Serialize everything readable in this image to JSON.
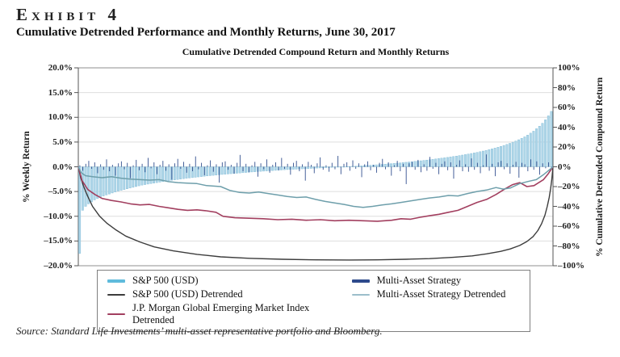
{
  "page": {
    "exhibit_label": "Exhibit 4",
    "title": "Cumulative Detrended Performance and Monthly Returns, June 30, 2017",
    "source": "Source: Standard Life Investments’ multi-asset representative portfolio and Bloomberg."
  },
  "chart_data": {
    "type": "bar",
    "subtype": "sorted-returns bars with detrended cumulative-return lines",
    "title": "Cumulative Detrended Compound Return and Monthly Returns",
    "grid": "horizontal gridlines on, no x-axis tick labels",
    "legend_position": "bottom boxed, two columns",
    "left_axis": {
      "label": "% Weekly Return",
      "min": -20,
      "max": 20,
      "step": 5,
      "ticks": [
        "20.0%",
        "15.0%",
        "10.0%",
        "5.0%",
        "0.0%",
        "–5.0%",
        "–10.0%",
        "–15.0%",
        "–20.0%"
      ]
    },
    "right_axis": {
      "label": "% Cumulative Detrended Compound Return",
      "min": -100,
      "max": 100,
      "step": 20,
      "ticks": [
        "100%",
        "80%",
        "60%",
        "40%",
        "20%",
        "0%",
        "–20%",
        "–40%",
        "–60%",
        "–80%",
        "–100%"
      ]
    },
    "series": [
      {
        "name": "S&P 500 (USD)",
        "type": "bar",
        "axis": "left",
        "color": "#7CB9D6",
        "bar_fill": "#AFD6E8",
        "legend_color": "#5FBBDC",
        "values": [
          -17.5,
          -8.8,
          -8.0,
          -7.5,
          -7.1,
          -6.7,
          -6.4,
          -6.1,
          -5.9,
          -5.7,
          -5.5,
          -5.3,
          -5.1,
          -4.9,
          -4.75,
          -4.6,
          -4.45,
          -4.3,
          -4.15,
          -4.0,
          -3.85,
          -3.7,
          -3.6,
          -3.5,
          -3.4,
          -3.3,
          -3.2,
          -3.1,
          -3.0,
          -2.9,
          -2.8,
          -2.72,
          -2.64,
          -2.56,
          -2.48,
          -2.4,
          -2.33,
          -2.26,
          -2.19,
          -2.12,
          -2.05,
          -1.98,
          -1.91,
          -1.85,
          -1.79,
          -1.73,
          -1.67,
          -1.61,
          -1.55,
          -1.5,
          -1.45,
          -1.4,
          -1.35,
          -1.3,
          -1.25,
          -1.2,
          -1.15,
          -1.1,
          -1.05,
          -1.0,
          -0.96,
          -0.92,
          -0.88,
          -0.84,
          -0.8,
          -0.76,
          -0.72,
          -0.68,
          -0.64,
          -0.6,
          -0.57,
          -0.54,
          -0.51,
          -0.48,
          -0.45,
          -0.42,
          -0.39,
          -0.36,
          -0.33,
          -0.3,
          -0.27,
          -0.24,
          -0.21,
          -0.18,
          -0.15,
          -0.12,
          -0.09,
          -0.06,
          -0.03,
          0.0,
          0.03,
          0.06,
          0.09,
          0.12,
          0.16,
          0.2,
          0.24,
          0.28,
          0.32,
          0.36,
          0.4,
          0.44,
          0.49,
          0.54,
          0.59,
          0.64,
          0.69,
          0.74,
          0.79,
          0.85,
          0.91,
          0.97,
          1.03,
          1.09,
          1.15,
          1.22,
          1.29,
          1.36,
          1.43,
          1.5,
          1.58,
          1.66,
          1.74,
          1.82,
          1.9,
          1.99,
          2.08,
          2.17,
          2.27,
          2.37,
          2.47,
          2.58,
          2.69,
          2.8,
          2.92,
          3.05,
          3.18,
          3.32,
          3.47,
          3.62,
          3.78,
          3.95,
          4.13,
          4.32,
          4.52,
          4.74,
          4.97,
          5.21,
          5.47,
          5.75,
          6.05,
          6.4,
          6.8,
          7.2,
          7.7,
          8.2,
          8.8,
          9.5,
          10.3,
          11.2
        ]
      },
      {
        "name": "Multi-Asset Strategy",
        "type": "bar",
        "axis": "left",
        "color": "#33508F",
        "legend_color": "#2E4A8C",
        "values": [
          0.3,
          -0.8,
          0.6,
          1.2,
          -0.4,
          0.9,
          -1.3,
          0.5,
          -0.6,
          1.5,
          -0.9,
          0.4,
          -1.8,
          0.7,
          1.1,
          -0.5,
          0.8,
          -2.3,
          0.3,
          1.4,
          -0.7,
          0.6,
          -1.1,
          1.8,
          -0.3,
          0.9,
          -1.5,
          0.4,
          1.2,
          -0.8,
          0.5,
          -2.6,
          0.7,
          1.6,
          -0.4,
          1.0,
          -1.2,
          0.6,
          -0.9,
          2.1,
          -0.5,
          0.8,
          -1.7,
          0.3,
          1.3,
          -1.0,
          0.5,
          -3.2,
          0.9,
          1.1,
          -0.6,
          0.4,
          -1.4,
          0.8,
          2.4,
          -0.9,
          0.6,
          -1.1,
          0.3,
          1.0,
          -2.0,
          0.7,
          -0.5,
          1.5,
          -1.2,
          0.4,
          0.9,
          -0.7,
          1.8,
          -0.4,
          0.6,
          -1.6,
          0.8,
          1.2,
          -0.9,
          0.5,
          -2.8,
          1.0,
          0.4,
          -1.3,
          0.7,
          1.9,
          -0.6,
          0.3,
          -1.0,
          0.8,
          -0.5,
          2.2,
          -1.5,
          0.6,
          0.9,
          -0.8,
          1.3,
          -0.4,
          0.7,
          -2.1,
          0.5,
          1.1,
          -0.7,
          0.4,
          -1.2,
          0.8,
          1.6,
          -0.5,
          0.9,
          -1.8,
          0.3,
          1.2,
          -0.9,
          0.6,
          -3.5,
          0.7,
          1.0,
          -0.6,
          1.4,
          -1.1,
          0.5,
          -0.8,
          2.0,
          -0.4,
          0.8,
          -1.5,
          0.6,
          1.1,
          -0.7,
          0.9,
          -2.4,
          0.4,
          1.3,
          -0.9,
          0.5,
          -1.0,
          1.7,
          -0.6,
          0.8,
          -1.3,
          0.3,
          2.5,
          -0.8,
          0.6,
          -1.9,
          0.9,
          1.2,
          -0.5,
          0.7,
          -1.4,
          0.4,
          1.0,
          -2.2,
          0.8,
          0.5,
          -0.9,
          1.5,
          -0.6,
          1.1,
          -1.6,
          0.7,
          -0.3,
          0.9,
          -0.5
        ]
      },
      {
        "name": "S&P 500 (USD) Detrended",
        "type": "line",
        "axis": "right",
        "color": "#3C3C3C",
        "width": 1.4,
        "points": [
          [
            0,
            0
          ],
          [
            0.005,
            -11
          ],
          [
            0.012,
            -21
          ],
          [
            0.02,
            -30
          ],
          [
            0.03,
            -40
          ],
          [
            0.045,
            -50
          ],
          [
            0.06,
            -57
          ],
          [
            0.08,
            -64
          ],
          [
            0.1,
            -70
          ],
          [
            0.13,
            -76
          ],
          [
            0.16,
            -81
          ],
          [
            0.2,
            -85
          ],
          [
            0.25,
            -88.5
          ],
          [
            0.3,
            -91
          ],
          [
            0.36,
            -92.5
          ],
          [
            0.43,
            -93.5
          ],
          [
            0.5,
            -94
          ],
          [
            0.57,
            -94.2
          ],
          [
            0.63,
            -94
          ],
          [
            0.69,
            -93.5
          ],
          [
            0.74,
            -92.8
          ],
          [
            0.79,
            -91.5
          ],
          [
            0.83,
            -90
          ],
          [
            0.86,
            -88
          ],
          [
            0.89,
            -85.5
          ],
          [
            0.91,
            -83
          ],
          [
            0.93,
            -79.5
          ],
          [
            0.945,
            -75.5
          ],
          [
            0.958,
            -70.5
          ],
          [
            0.968,
            -64.5
          ],
          [
            0.976,
            -57.5
          ],
          [
            0.983,
            -49
          ],
          [
            0.988,
            -40
          ],
          [
            0.992,
            -31
          ],
          [
            0.995,
            -22
          ],
          [
            0.9975,
            -13
          ],
          [
            1,
            0
          ]
        ]
      },
      {
        "name": "Multi-Asset Strategy Detrended",
        "type": "line",
        "axis": "right",
        "color": "#6E9FAB",
        "legend_color": "#9CBECB",
        "width": 1.5,
        "points": [
          [
            0,
            0
          ],
          [
            0.006,
            -6
          ],
          [
            0.015,
            -9
          ],
          [
            0.03,
            -10
          ],
          [
            0.05,
            -11
          ],
          [
            0.07,
            -10
          ],
          [
            0.09,
            -11.5
          ],
          [
            0.11,
            -12.5
          ],
          [
            0.13,
            -13
          ],
          [
            0.15,
            -13.5
          ],
          [
            0.17,
            -13
          ],
          [
            0.19,
            -15
          ],
          [
            0.21,
            -16
          ],
          [
            0.23,
            -16.5
          ],
          [
            0.25,
            -17
          ],
          [
            0.27,
            -19
          ],
          [
            0.3,
            -20
          ],
          [
            0.32,
            -24
          ],
          [
            0.34,
            -26
          ],
          [
            0.36,
            -26.5
          ],
          [
            0.38,
            -25.5
          ],
          [
            0.4,
            -27
          ],
          [
            0.42,
            -28.5
          ],
          [
            0.44,
            -30
          ],
          [
            0.46,
            -31
          ],
          [
            0.48,
            -30.5
          ],
          [
            0.5,
            -33
          ],
          [
            0.52,
            -35
          ],
          [
            0.54,
            -36.5
          ],
          [
            0.56,
            -38
          ],
          [
            0.58,
            -40
          ],
          [
            0.6,
            -41
          ],
          [
            0.62,
            -40
          ],
          [
            0.64,
            -38.5
          ],
          [
            0.66,
            -37.5
          ],
          [
            0.68,
            -36
          ],
          [
            0.7,
            -34.5
          ],
          [
            0.72,
            -33
          ],
          [
            0.74,
            -31.5
          ],
          [
            0.76,
            -30.5
          ],
          [
            0.78,
            -29
          ],
          [
            0.8,
            -29.5
          ],
          [
            0.82,
            -27
          ],
          [
            0.84,
            -25
          ],
          [
            0.86,
            -23.5
          ],
          [
            0.88,
            -21
          ],
          [
            0.895,
            -22.5
          ],
          [
            0.91,
            -21.5
          ],
          [
            0.93,
            -17
          ],
          [
            0.95,
            -14.5
          ],
          [
            0.965,
            -13
          ],
          [
            0.98,
            -8
          ],
          [
            0.99,
            -4
          ],
          [
            1,
            0
          ]
        ]
      },
      {
        "name": "J.P. Morgan Global Emerging Market Index Detrended",
        "type": "line",
        "axis": "right",
        "color": "#A23F5F",
        "width": 1.6,
        "points": [
          [
            0,
            0
          ],
          [
            0.008,
            -14
          ],
          [
            0.02,
            -23
          ],
          [
            0.035,
            -28
          ],
          [
            0.05,
            -32
          ],
          [
            0.07,
            -34
          ],
          [
            0.09,
            -35.5
          ],
          [
            0.11,
            -37.5
          ],
          [
            0.13,
            -38.5
          ],
          [
            0.15,
            -38
          ],
          [
            0.17,
            -40
          ],
          [
            0.19,
            -41.5
          ],
          [
            0.21,
            -43
          ],
          [
            0.23,
            -44
          ],
          [
            0.25,
            -43.5
          ],
          [
            0.27,
            -44.5
          ],
          [
            0.29,
            -46
          ],
          [
            0.305,
            -50
          ],
          [
            0.33,
            -51.5
          ],
          [
            0.36,
            -52
          ],
          [
            0.39,
            -52.5
          ],
          [
            0.42,
            -53.5
          ],
          [
            0.45,
            -53
          ],
          [
            0.48,
            -54
          ],
          [
            0.51,
            -53.5
          ],
          [
            0.54,
            -54.5
          ],
          [
            0.57,
            -54
          ],
          [
            0.6,
            -54.5
          ],
          [
            0.63,
            -55
          ],
          [
            0.66,
            -54
          ],
          [
            0.68,
            -52.5
          ],
          [
            0.7,
            -53
          ],
          [
            0.72,
            -51
          ],
          [
            0.74,
            -49.5
          ],
          [
            0.76,
            -48
          ],
          [
            0.78,
            -46
          ],
          [
            0.8,
            -44
          ],
          [
            0.82,
            -40
          ],
          [
            0.84,
            -36
          ],
          [
            0.86,
            -33
          ],
          [
            0.88,
            -28
          ],
          [
            0.9,
            -22
          ],
          [
            0.915,
            -18
          ],
          [
            0.93,
            -16
          ],
          [
            0.945,
            -20
          ],
          [
            0.96,
            -19
          ],
          [
            0.97,
            -16
          ],
          [
            0.98,
            -13
          ],
          [
            0.99,
            -7
          ],
          [
            1,
            0
          ]
        ]
      }
    ]
  }
}
